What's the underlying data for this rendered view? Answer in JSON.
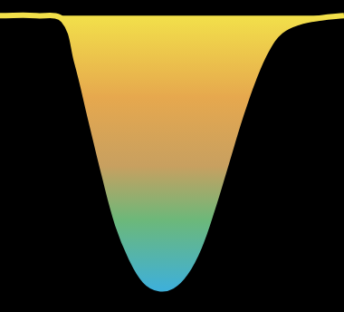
{
  "chart_data": {
    "type": "line",
    "x": [
      0,
      40,
      70,
      85,
      100,
      115,
      130,
      145,
      160,
      175,
      190,
      205,
      220,
      235,
      250,
      265,
      280,
      295,
      310,
      330,
      355,
      380
    ],
    "values": [
      0,
      0,
      -4,
      -42,
      -92,
      -142,
      -187,
      -217,
      -237,
      -244,
      -242,
      -230,
      -207,
      -172,
      -132,
      -92,
      -57,
      -30,
      -14,
      -6,
      -2,
      0
    ],
    "color": "#f2e04a",
    "xlim": [
      0,
      380
    ],
    "ylim": [
      -265,
      14
    ],
    "grid": false,
    "tick_labels": false
  }
}
